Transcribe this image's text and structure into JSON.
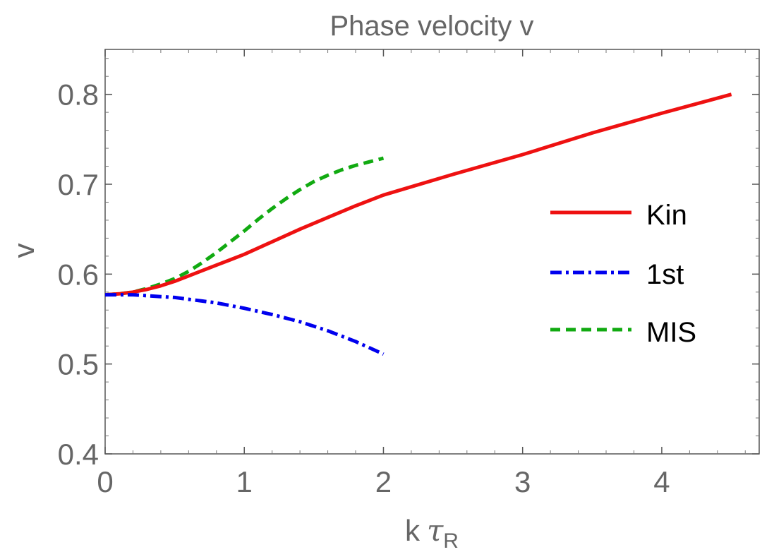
{
  "chart_data": {
    "type": "line",
    "title": "Phase velocity v",
    "xlabel": "k",
    "xlabel_symbol": "τ",
    "xlabel_subscript": "R",
    "ylabel": "v",
    "xlim": [
      0,
      4.7
    ],
    "ylim": [
      0.4,
      0.85
    ],
    "x_ticks": [
      0,
      1,
      2,
      3,
      4
    ],
    "y_ticks": [
      0.4,
      0.5,
      0.6,
      0.7,
      0.8
    ],
    "x_tick_labels": [
      "0",
      "1",
      "2",
      "3",
      "4"
    ],
    "y_tick_labels": [
      "0.4",
      "0.5",
      "0.6",
      "0.7",
      "0.8"
    ],
    "grid": false,
    "legend_position": "right",
    "series": [
      {
        "name": "Kin",
        "color": "#ee1111",
        "style": "solid",
        "x": [
          0,
          0.1,
          0.2,
          0.3,
          0.4,
          0.5,
          0.6,
          0.7,
          0.8,
          0.9,
          1.0,
          1.2,
          1.4,
          1.6,
          1.8,
          2.0,
          2.5,
          3.0,
          3.5,
          4.0,
          4.5
        ],
        "y": [
          0.577,
          0.578,
          0.58,
          0.583,
          0.587,
          0.592,
          0.598,
          0.604,
          0.61,
          0.616,
          0.622,
          0.636,
          0.65,
          0.663,
          0.676,
          0.688,
          0.711,
          0.733,
          0.757,
          0.779,
          0.8
        ]
      },
      {
        "name": "1st",
        "color": "#0000ee",
        "style": "dashdot",
        "x": [
          0,
          0.1,
          0.2,
          0.3,
          0.4,
          0.5,
          0.6,
          0.7,
          0.8,
          0.9,
          1.0,
          1.2,
          1.4,
          1.6,
          1.8,
          2.0
        ],
        "y": [
          0.577,
          0.577,
          0.577,
          0.576,
          0.575,
          0.574,
          0.572,
          0.57,
          0.568,
          0.565,
          0.562,
          0.555,
          0.547,
          0.537,
          0.525,
          0.511
        ]
      },
      {
        "name": "MIS",
        "color": "#11aa11",
        "style": "dashed",
        "x": [
          0,
          0.1,
          0.2,
          0.3,
          0.4,
          0.5,
          0.6,
          0.7,
          0.8,
          0.9,
          1.0,
          1.1,
          1.2,
          1.3,
          1.4,
          1.5,
          1.6,
          1.7,
          1.8,
          1.9,
          2.0
        ],
        "y": [
          0.577,
          0.578,
          0.58,
          0.584,
          0.589,
          0.595,
          0.603,
          0.613,
          0.624,
          0.636,
          0.648,
          0.661,
          0.673,
          0.684,
          0.694,
          0.703,
          0.71,
          0.716,
          0.721,
          0.725,
          0.729
        ]
      }
    ]
  }
}
